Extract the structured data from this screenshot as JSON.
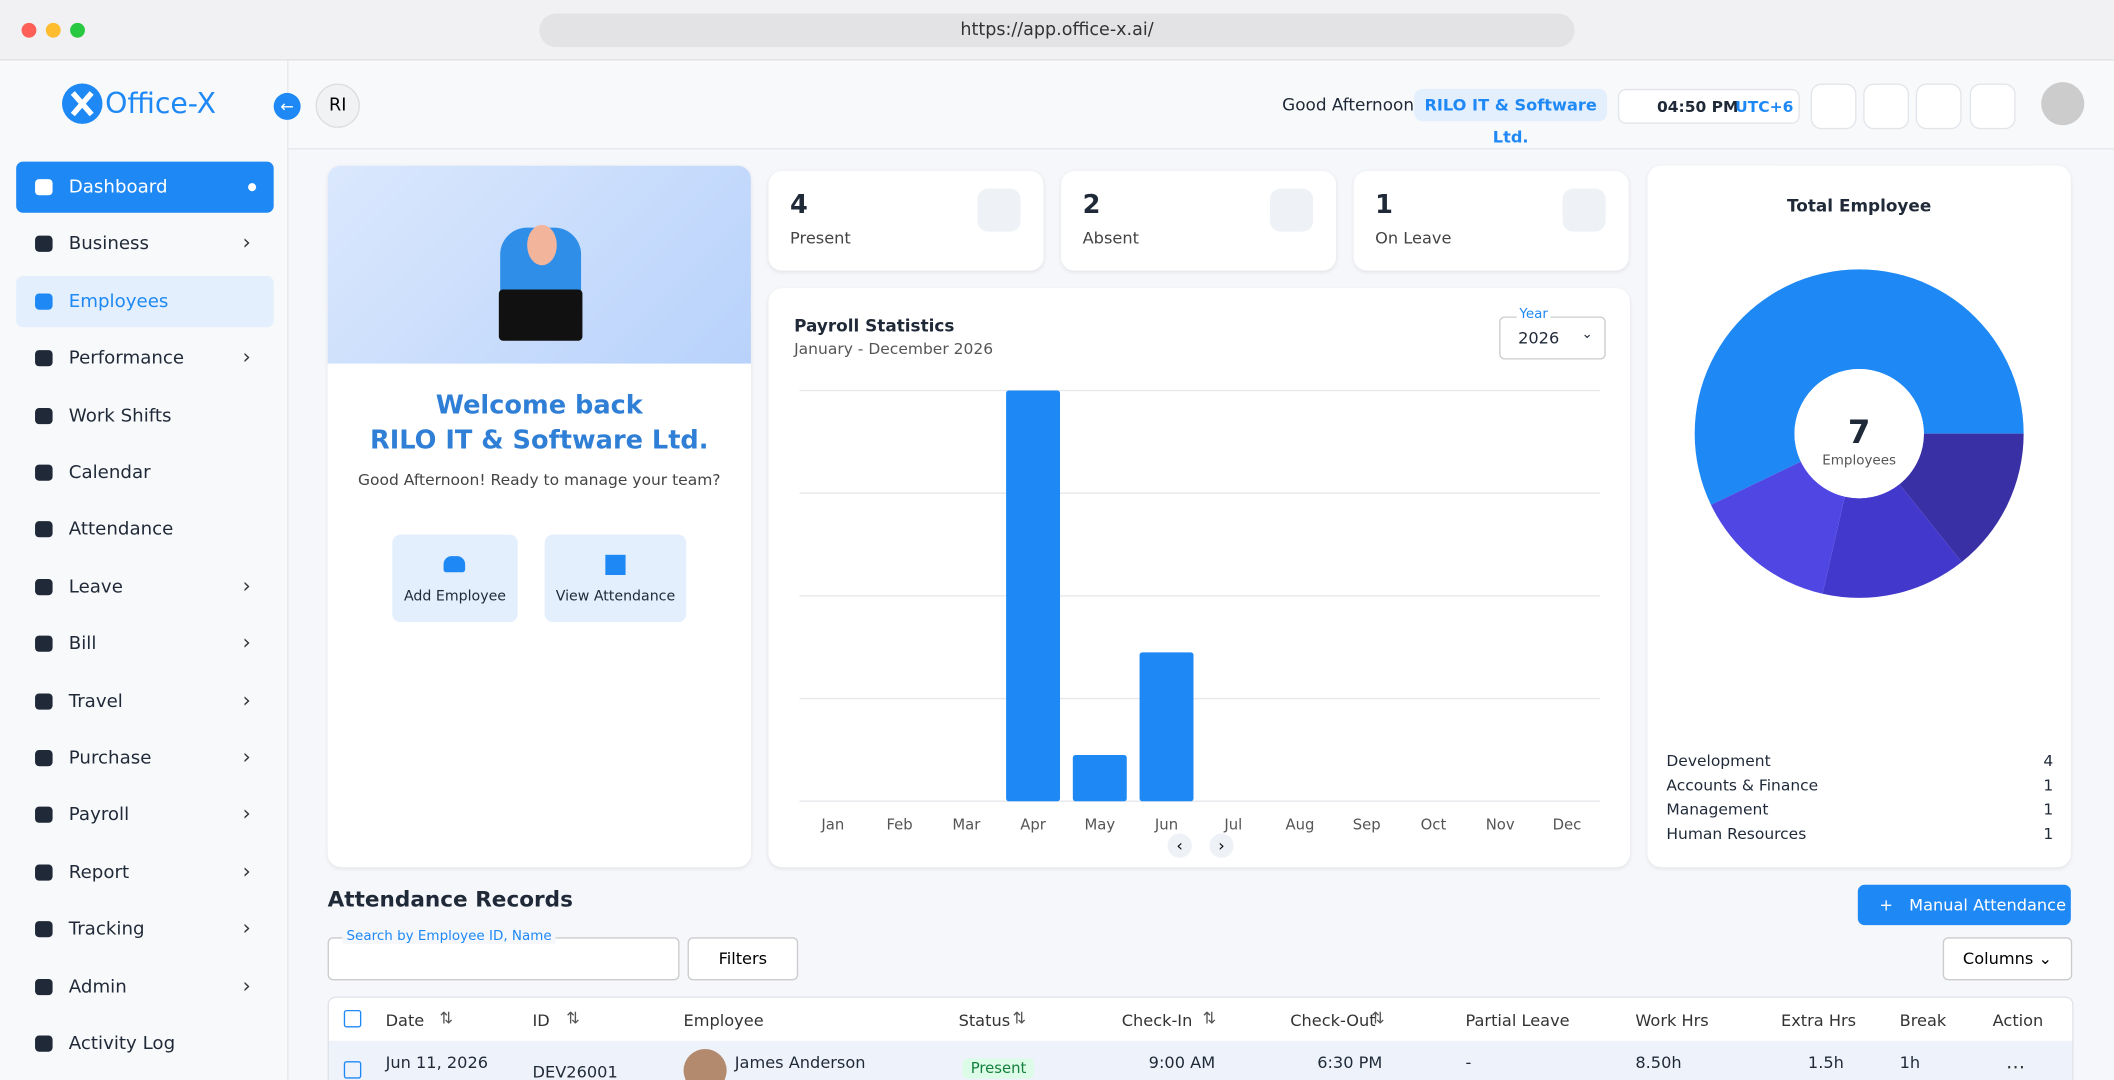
{
  "browser": {
    "url": "https://app.office-x.ai/"
  },
  "sidebar": {
    "logo": "Office-X",
    "items": [
      {
        "label": "Dashboard",
        "expandable": false
      },
      {
        "label": "Business",
        "expandable": true
      },
      {
        "label": "Employees",
        "expandable": false
      },
      {
        "label": "Performance",
        "expandable": true
      },
      {
        "label": "Work Shifts",
        "expandable": false
      },
      {
        "label": "Calendar",
        "expandable": false
      },
      {
        "label": "Attendance",
        "expandable": false
      },
      {
        "label": "Leave",
        "expandable": true
      },
      {
        "label": "Bill",
        "expandable": true
      },
      {
        "label": "Travel",
        "expandable": true
      },
      {
        "label": "Purchase",
        "expandable": true
      },
      {
        "label": "Payroll",
        "expandable": true
      },
      {
        "label": "Report",
        "expandable": true
      },
      {
        "label": "Tracking",
        "expandable": true
      },
      {
        "label": "Admin",
        "expandable": true
      },
      {
        "label": "Activity Log",
        "expandable": false
      }
    ]
  },
  "header": {
    "user_initials": "RI",
    "greeting": "Good Afternoon!",
    "company": "RILO IT & Software Ltd.",
    "time": "04:50 PM",
    "timezone": "UTC+6"
  },
  "welcome": {
    "title_line1": "Welcome back",
    "title_line2": "RILO IT & Software Ltd.",
    "subtitle": "Good Afternoon! Ready to manage your team?",
    "actions": [
      "Add Employee",
      "View Attendance"
    ]
  },
  "stats": [
    {
      "value": 4,
      "label": "Present"
    },
    {
      "value": 2,
      "label": "Absent"
    },
    {
      "value": 1,
      "label": "On Leave"
    }
  ],
  "payroll_chart": {
    "type": "bar",
    "title": "Payroll Statistics",
    "subtitle": "January - December 2026",
    "year_label": "Year",
    "year": "2026",
    "categories": [
      "Jan",
      "Feb",
      "Mar",
      "Apr",
      "May",
      "Jun",
      "Jul",
      "Aug",
      "Sep",
      "Oct",
      "Nov",
      "Dec"
    ],
    "values": [
      0,
      0,
      0,
      40000,
      4500,
      14500,
      0,
      0,
      0,
      0,
      0,
      0
    ],
    "color": "#1e88f5",
    "ylim": [
      0,
      40000
    ],
    "gridlines": [
      0,
      10000,
      20000,
      30000,
      40000
    ]
  },
  "total_employee": {
    "type": "pie",
    "title": "Total Employee",
    "total": 7,
    "total_label": "Employees",
    "categories": [
      "Development",
      "Accounts & Finance",
      "Management",
      "Human Resources"
    ],
    "values": [
      4,
      1,
      1,
      1
    ],
    "colors": [
      "#1e88f5",
      "#3a30a6",
      "#4338cc",
      "#4f46e3"
    ]
  },
  "attendance": {
    "title": "Attendance Records",
    "add_button": "Manual Attendance",
    "search_label": "Search by Employee ID, Name",
    "filters": "Filters",
    "columns": "Columns",
    "headers": [
      "Date",
      "ID",
      "Employee",
      "Status",
      "Check-In",
      "Check-Out",
      "Partial Leave",
      "Work Hrs",
      "Extra Hrs",
      "Break",
      "Action"
    ],
    "rows": [
      [
        "Jun 11, 2026",
        "DEV26001",
        "James Anderson",
        "Present",
        "9:00 AM",
        "6:30 PM",
        "-",
        "8.50h",
        "1.5h",
        "1h"
      ]
    ]
  }
}
